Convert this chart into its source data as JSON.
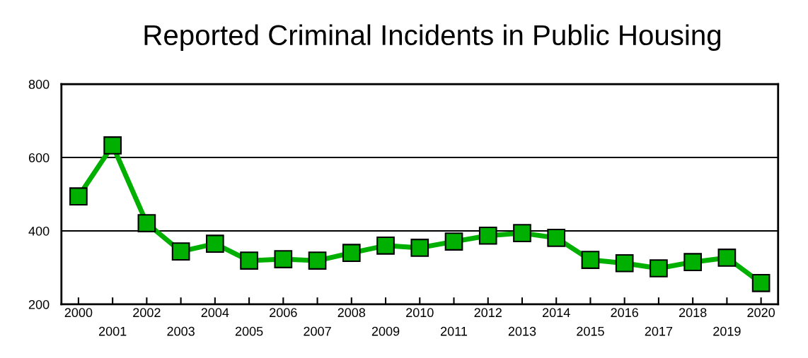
{
  "chart_data": {
    "type": "line",
    "title": "Reported Criminal Incidents in Public Housing",
    "categories": [
      "2000",
      "2001",
      "2002",
      "2003",
      "2004",
      "2005",
      "2006",
      "2007",
      "2008",
      "2009",
      "2010",
      "2011",
      "2012",
      "2013",
      "2014",
      "2015",
      "2016",
      "2017",
      "2018",
      "2019",
      "2020"
    ],
    "series": [
      {
        "color": "#00b000",
        "values": [
          494,
          633,
          421,
          344,
          365,
          319,
          323,
          319,
          340,
          360,
          354,
          371,
          387,
          394,
          381,
          321,
          312,
          298,
          315,
          327,
          258
        ]
      }
    ],
    "ylim": [
      200,
      800
    ],
    "yticks": [
      200,
      400,
      600,
      800
    ],
    "grid": "y",
    "marker": "square",
    "line_style": "solid"
  }
}
